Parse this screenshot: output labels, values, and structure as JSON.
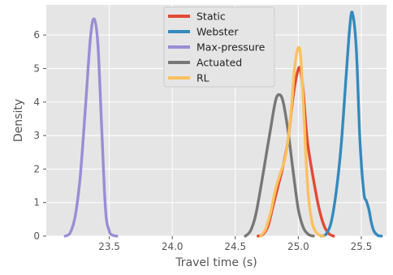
{
  "chart_data": {
    "type": "area",
    "title": "",
    "xlabel": "Travel time (s)",
    "ylabel": "Density",
    "xlim": [
      23.0,
      25.7
    ],
    "ylim": [
      0,
      6.9
    ],
    "xticks": [
      "23.5",
      "24.0",
      "24.5",
      "25.0",
      "25.5"
    ],
    "yticks": [
      "0",
      "1",
      "2",
      "3",
      "4",
      "5",
      "6"
    ],
    "grid": true,
    "legend_position": "top-center",
    "series": [
      {
        "name": "Static",
        "color": "#e24a33",
        "x": [
          24.68,
          24.72,
          24.76,
          24.8,
          24.84,
          24.88,
          24.92,
          24.96,
          25.0,
          25.02,
          25.04,
          25.06,
          25.08,
          25.12,
          25.16,
          25.2,
          25.24,
          25.28
        ],
        "y": [
          0,
          0.05,
          0.3,
          0.9,
          1.5,
          2.1,
          2.9,
          4.2,
          4.98,
          4.9,
          4.3,
          3.3,
          2.6,
          1.7,
          0.9,
          0.35,
          0.08,
          0
        ]
      },
      {
        "name": "Webster",
        "color": "#348abd",
        "x": [
          25.18,
          25.22,
          25.26,
          25.3,
          25.34,
          25.38,
          25.41,
          25.43,
          25.46,
          25.49,
          25.52,
          25.54,
          25.56,
          25.58,
          25.6,
          25.63,
          25.66
        ],
        "y": [
          0,
          0.05,
          0.4,
          1.3,
          2.7,
          4.8,
          6.3,
          6.65,
          5.6,
          2.8,
          1.3,
          1.05,
          0.8,
          0.4,
          0.15,
          0.02,
          0
        ]
      },
      {
        "name": "Max-pressure",
        "color": "#988ed5",
        "x": [
          23.15,
          23.19,
          23.23,
          23.27,
          23.31,
          23.35,
          23.38,
          23.41,
          23.44,
          23.47,
          23.5,
          23.53,
          23.56
        ],
        "y": [
          0,
          0.1,
          0.6,
          1.8,
          3.8,
          5.9,
          6.48,
          5.7,
          3.2,
          0.8,
          0.15,
          0.02,
          0
        ]
      },
      {
        "name": "Actuated",
        "color": "#777777",
        "x": [
          24.58,
          24.62,
          24.66,
          24.7,
          24.74,
          24.78,
          24.82,
          24.85,
          24.88,
          24.92,
          24.96,
          25.0,
          25.04,
          25.08,
          25.12
        ],
        "y": [
          0,
          0.15,
          0.6,
          1.4,
          2.3,
          3.2,
          4.05,
          4.22,
          4.0,
          3.1,
          1.9,
          0.8,
          0.25,
          0.05,
          0
        ]
      },
      {
        "name": "RL",
        "color": "#fbc15e",
        "x": [
          24.7,
          24.74,
          24.78,
          24.82,
          24.86,
          24.9,
          24.94,
          24.97,
          25.0,
          25.02,
          25.04,
          25.06,
          25.08,
          25.11,
          25.14,
          25.17,
          25.2
        ],
        "y": [
          0,
          0.2,
          0.7,
          1.4,
          1.9,
          2.4,
          3.6,
          5.0,
          5.62,
          5.3,
          4.0,
          2.4,
          1.2,
          0.4,
          0.12,
          0.02,
          0
        ]
      }
    ]
  }
}
